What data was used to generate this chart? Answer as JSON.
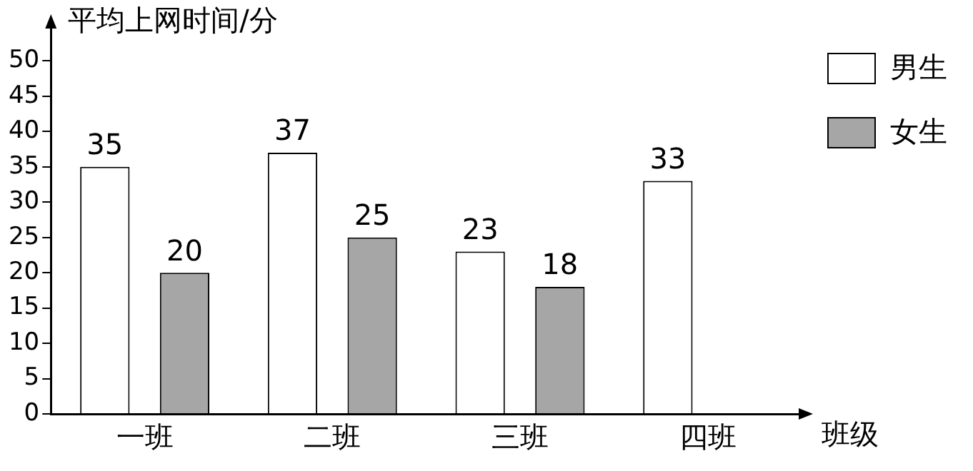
{
  "chart_data": {
    "type": "bar",
    "ylabel": "平均上网时间/分",
    "xlabel": "班级",
    "categories": [
      "一班",
      "二班",
      "三班",
      "四班"
    ],
    "series": [
      {
        "name": "男生",
        "color": "#ffffff",
        "values": [
          35,
          37,
          23,
          33
        ]
      },
      {
        "name": "女生",
        "color": "#a6a6a6",
        "values": [
          20,
          25,
          18,
          null
        ]
      }
    ],
    "ylim": [
      0,
      55
    ],
    "yticks": [
      0,
      5,
      10,
      15,
      20,
      25,
      30,
      35,
      40,
      45,
      50
    ],
    "grid": false,
    "legend": "top right",
    "data_labels": true
  }
}
